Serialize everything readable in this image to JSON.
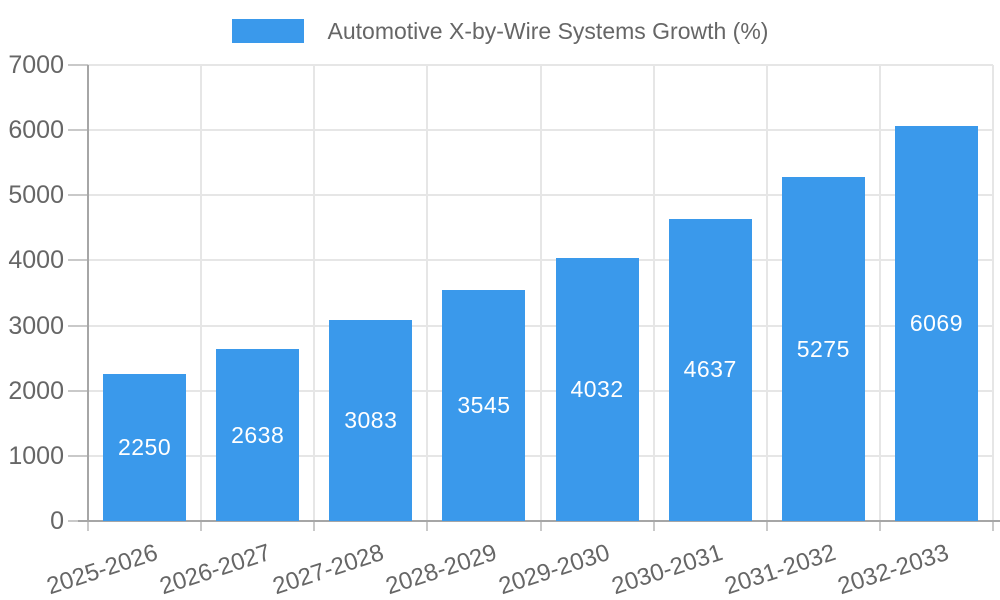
{
  "legend": {
    "label": "Automotive X-by-Wire Systems Growth (%)"
  },
  "chart_data": {
    "type": "bar",
    "title": "Automotive X-by-Wire Systems Growth (%)",
    "categories": [
      "2025-2026",
      "2026-2027",
      "2027-2028",
      "2028-2029",
      "2029-2030",
      "2030-2031",
      "2031-2032",
      "2032-2033"
    ],
    "values": [
      2250,
      2638,
      3083,
      3545,
      4032,
      4637,
      5275,
      6069
    ],
    "bar_value_labels": [
      "2250",
      "2638",
      "3083",
      "3545",
      "4032",
      "4637",
      "5275",
      "6069"
    ],
    "xlabel": "",
    "ylabel": "",
    "ylim": [
      0,
      7000
    ],
    "ytick_step": 1000,
    "ytick_labels": [
      "0",
      "1000",
      "2000",
      "3000",
      "4000",
      "5000",
      "6000",
      "7000"
    ],
    "grid": true,
    "legend_position": "top",
    "colors": {
      "bar": "#3A99EB",
      "value_label": "#FFFFFF",
      "tick_text": "#666666",
      "grid": "#E6E6E6",
      "axis": "#A6A6A6",
      "tick_mark": "#C9C9C9",
      "background": "#FFFFFF"
    }
  }
}
